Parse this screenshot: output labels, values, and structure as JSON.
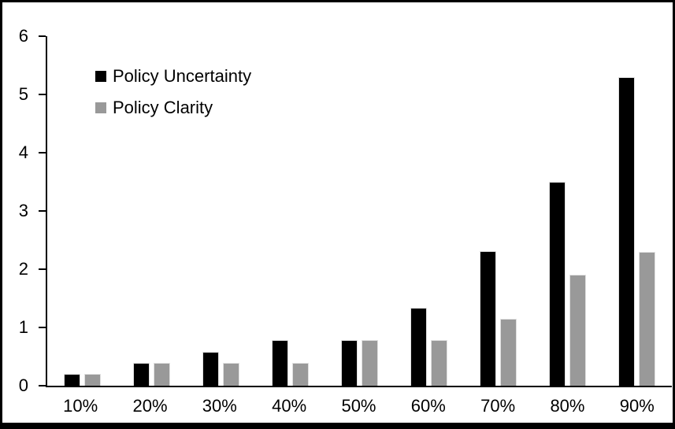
{
  "figure": {
    "background_color": "#ffffff",
    "frame_border_color": "#000000",
    "axis_color": "#000000",
    "text_color": "#000000"
  },
  "chart_data": {
    "type": "bar",
    "title": "",
    "xlabel": "",
    "ylabel": "",
    "categories": [
      "10%",
      "20%",
      "30%",
      "40%",
      "50%",
      "60%",
      "70%",
      "80%",
      "90%"
    ],
    "series": [
      {
        "name": "Policy Uncertainty",
        "color": "#000000",
        "values": [
          0.2,
          0.39,
          0.58,
          0.78,
          0.78,
          1.34,
          2.31,
          3.5,
          5.3
        ]
      },
      {
        "name": "Policy Clarity",
        "color": "#999999",
        "values": [
          0.2,
          0.39,
          0.39,
          0.39,
          0.78,
          0.78,
          1.15,
          1.9,
          2.3
        ]
      }
    ],
    "ylim": [
      0,
      6
    ],
    "yticks": [
      0,
      1,
      2,
      3,
      4,
      5,
      6
    ],
    "grid": false,
    "legend_position": "top-left-inside"
  }
}
